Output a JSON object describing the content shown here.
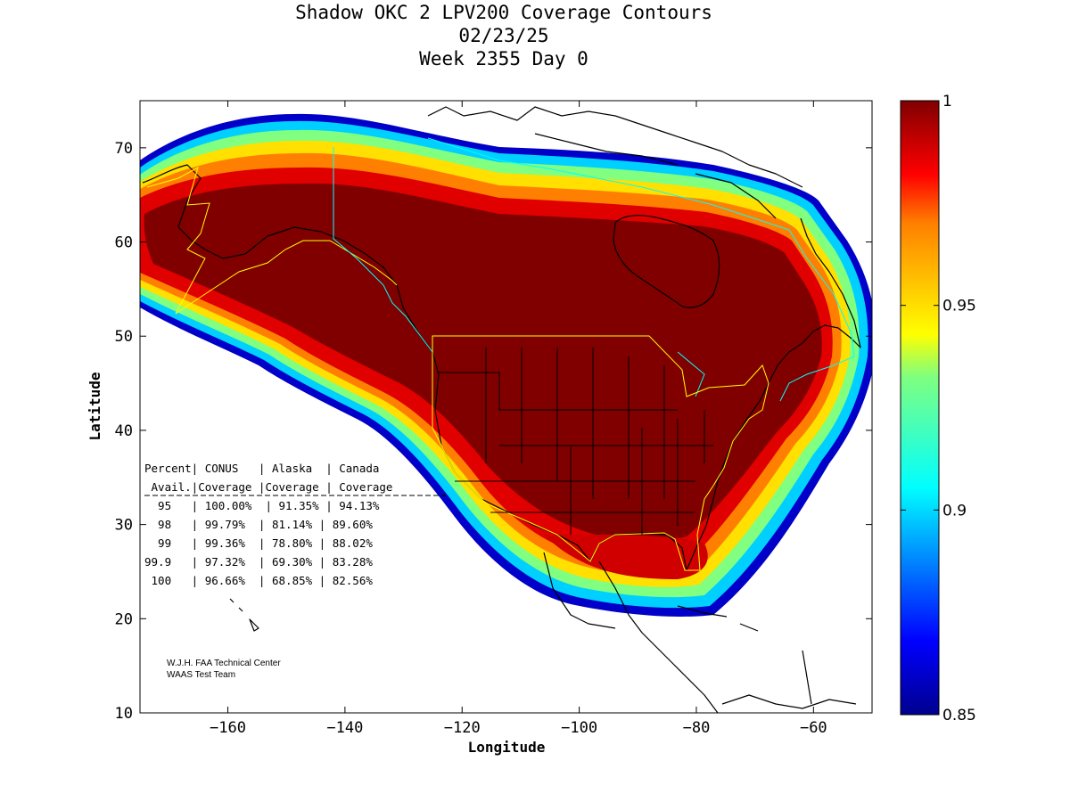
{
  "title": {
    "line1": "Shadow OKC 2 LPV200 Coverage Contours",
    "line2": "02/23/25",
    "line3": "Week 2355 Day 0"
  },
  "chart_data": {
    "type": "heatmap",
    "title": "Shadow OKC 2 LPV200 Coverage Contours",
    "xlabel": "Longitude",
    "ylabel": "Latitude",
    "xlim": [
      -175,
      -50
    ],
    "ylim": [
      10,
      75
    ],
    "xticks": [
      -160,
      -140,
      -120,
      -100,
      -80,
      -60
    ],
    "yticks": [
      10,
      20,
      30,
      40,
      50,
      60,
      70
    ],
    "colorbar": {
      "range": [
        0.85,
        1
      ],
      "ticks": [
        0.85,
        0.9,
        0.95,
        1
      ],
      "tick_labels": [
        "0.85",
        "0.9",
        "0.95",
        "1"
      ]
    }
  },
  "table": {
    "header1": "Percent| CONUS   | Alaska  | Canada",
    "header2": " Avail.|Coverage |Coverage | Coverage",
    "rows": [
      "  95   | 100.00%  | 91.35% | 94.13%",
      "  98   | 99.79%  | 81.14% | 89.60%",
      "  99   | 99.36%  | 78.80% | 88.02%",
      "99.9   | 97.32%  | 69.30% | 83.28%",
      " 100   | 96.66%  | 68.85% | 82.56%"
    ]
  },
  "credit": {
    "line1": "W.J.H. FAA Technical Center",
    "line2": "WAAS Test Team"
  }
}
